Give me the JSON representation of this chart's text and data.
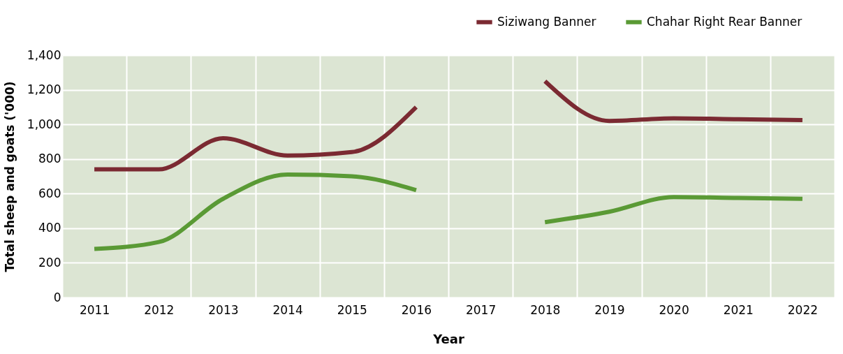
{
  "chart_data": {
    "type": "line",
    "xlabel": "Year",
    "ylabel": "Total sheep and goats ('000)",
    "categories": [
      "2011",
      "2012",
      "2013",
      "2014",
      "2015",
      "2016",
      "2017",
      "2018",
      "2019",
      "2020",
      "2021",
      "2022"
    ],
    "series": [
      {
        "name": "Siziwang Banner",
        "color": "#7b2a32",
        "values": [
          740,
          740,
          920,
          820,
          840,
          1100,
          null,
          1250,
          1020,
          1035,
          1030,
          1025
        ]
      },
      {
        "name": "Chahar Right Rear Banner",
        "color": "#5a9a35",
        "values": [
          280,
          320,
          570,
          710,
          700,
          620,
          null,
          435,
          495,
          580,
          575,
          570
        ]
      }
    ],
    "ylim": [
      0,
      1400
    ],
    "yticks": [
      {
        "value": 0,
        "label": "0"
      },
      {
        "value": 200,
        "label": "200"
      },
      {
        "value": 400,
        "label": "400"
      },
      {
        "value": 600,
        "label": "600"
      },
      {
        "value": 800,
        "label": "800"
      },
      {
        "value": 1000,
        "label": "1,000"
      },
      {
        "value": 1200,
        "label": "1,200"
      },
      {
        "value": 1400,
        "label": "1,400"
      }
    ],
    "grid": true,
    "legend": "top right",
    "marker": "none",
    "line_style": "solid"
  }
}
